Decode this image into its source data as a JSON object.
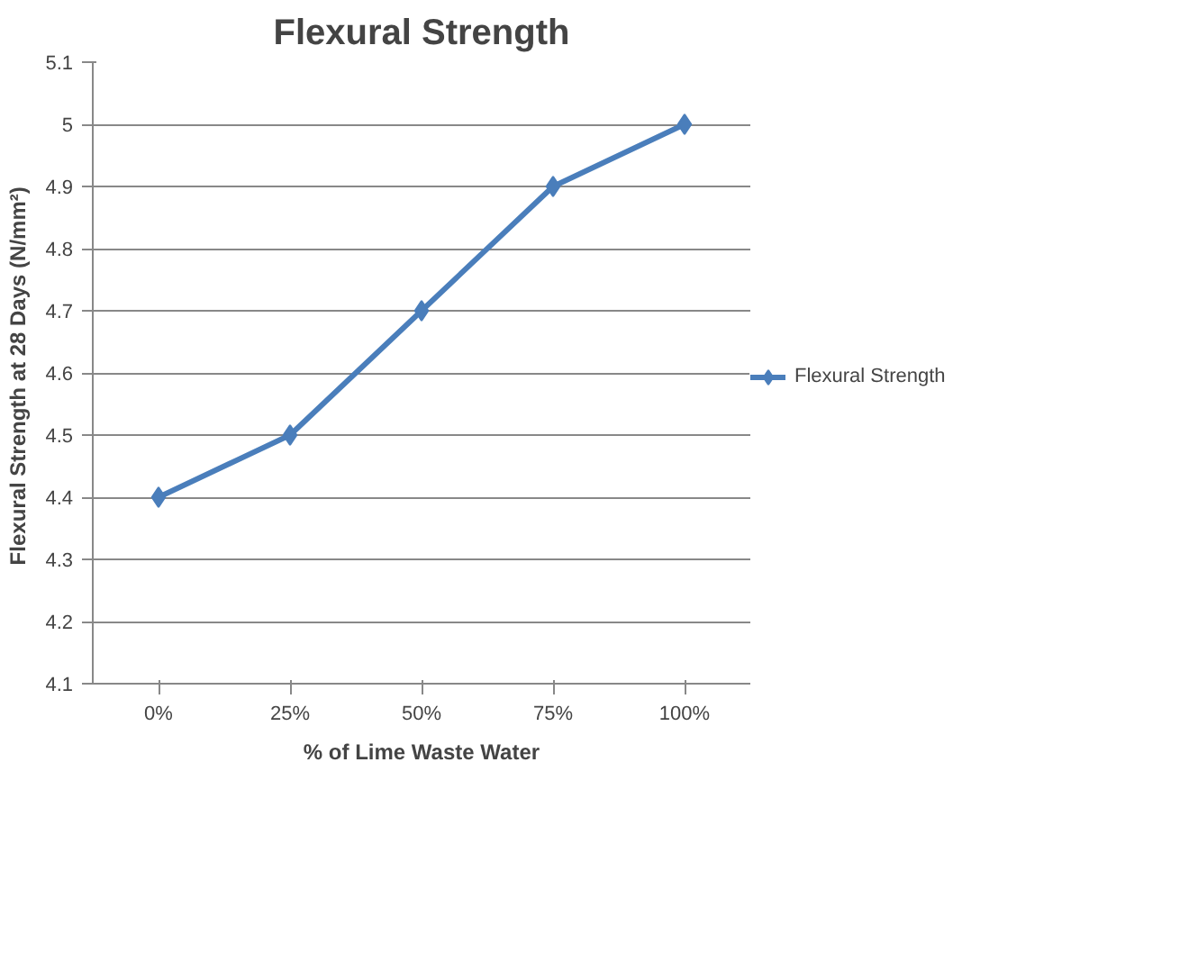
{
  "chart_data": {
    "type": "line",
    "title": "Flexural Strength",
    "xlabel": "% of Lime Waste Water",
    "ylabel": "Flexural Strength at 28 Days  (N/mm²)",
    "categories": [
      "0%",
      "25%",
      "50%",
      "75%",
      "100%"
    ],
    "series": [
      {
        "name": "Flexural Strength",
        "color": "#4a7ebb",
        "values": [
          4.4,
          4.5,
          4.7,
          4.9,
          5.0
        ]
      }
    ],
    "ylim": [
      4.1,
      5.1
    ],
    "yticks": [
      4.1,
      4.2,
      4.3,
      4.4,
      4.5,
      4.6,
      4.7,
      4.8,
      4.9,
      5,
      5.1
    ],
    "grid": "y",
    "legend": "right",
    "marker": "diamond",
    "line_style": "solid"
  }
}
